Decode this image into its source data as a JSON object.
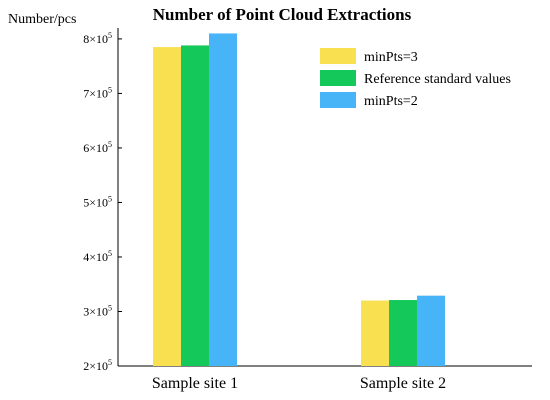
{
  "chart_data": {
    "type": "bar",
    "title": "Number of Point Cloud Extractions",
    "ylabel": "Number/pcs",
    "xlabel": "",
    "categories": [
      "Sample site 1",
      "Sample site 2"
    ],
    "series": [
      {
        "name": "minPts=3",
        "color": "#F8E050",
        "values": [
          785000,
          320000
        ]
      },
      {
        "name": "Reference standard values",
        "color": "#14C85A",
        "values": [
          788000,
          321000
        ]
      },
      {
        "name": "minPts=2",
        "color": "#48B4F8",
        "values": [
          810000,
          329000
        ]
      }
    ],
    "ylim": [
      200000,
      820000
    ],
    "yticks": [
      {
        "value": 200000,
        "mantissa": "2",
        "base": "×10",
        "exp": "5"
      },
      {
        "value": 300000,
        "mantissa": "3",
        "base": "×10",
        "exp": "5"
      },
      {
        "value": 400000,
        "mantissa": "4",
        "base": "×10",
        "exp": "5"
      },
      {
        "value": 500000,
        "mantissa": "5",
        "base": "×10",
        "exp": "5"
      },
      {
        "value": 600000,
        "mantissa": "6",
        "base": "×10",
        "exp": "5"
      },
      {
        "value": 700000,
        "mantissa": "7",
        "base": "×10",
        "exp": "5"
      },
      {
        "value": 800000,
        "mantissa": "8",
        "base": "×10",
        "exp": "5"
      }
    ],
    "grid": false,
    "legend_position": "top-right"
  }
}
